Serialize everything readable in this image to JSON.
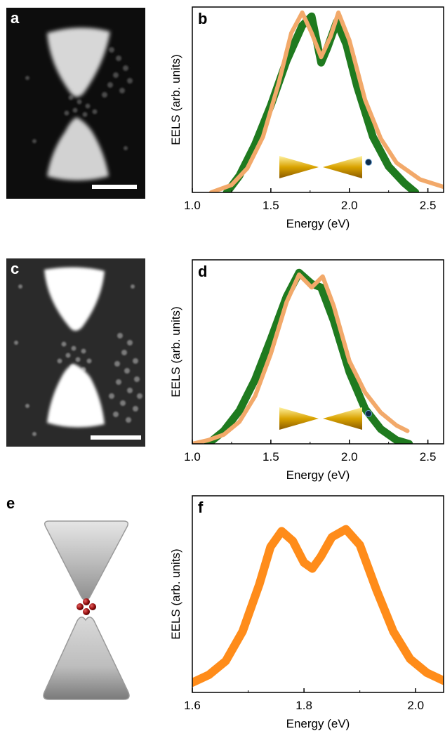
{
  "panels": {
    "a": "a",
    "b": "b",
    "c": "c",
    "d": "d",
    "e": "e",
    "f": "f"
  },
  "colors": {
    "green": "#1f7a1f",
    "light_orange": "#f2a96a",
    "orange": "#ff8c1a",
    "gold": "#d9a300"
  },
  "chart_data": [
    {
      "id": "b",
      "type": "line",
      "xlabel": "Energy (eV)",
      "ylabel": "EELS (arb. units)",
      "xlim": [
        1.0,
        2.6
      ],
      "ylim": [
        0,
        1.0
      ],
      "xticks": [
        "1.0",
        "1.5",
        "2.0",
        "2.5"
      ],
      "xtick_values": [
        1.0,
        1.5,
        2.0,
        2.5
      ],
      "series": [
        {
          "color": "#1f7a1f",
          "x": [
            1.22,
            1.3,
            1.4,
            1.5,
            1.6,
            1.7,
            1.76,
            1.82,
            1.86,
            1.92,
            1.98,
            2.05,
            2.15,
            2.25,
            2.35,
            2.42
          ],
          "y": [
            0.0,
            0.09,
            0.26,
            0.47,
            0.71,
            0.9,
            0.95,
            0.7,
            0.78,
            0.92,
            0.8,
            0.57,
            0.3,
            0.14,
            0.05,
            0.0
          ]
        },
        {
          "color": "#f2a96a",
          "x": [
            1.12,
            1.25,
            1.35,
            1.45,
            1.55,
            1.63,
            1.7,
            1.76,
            1.82,
            1.88,
            1.93,
            2.0,
            2.1,
            2.2,
            2.3,
            2.45,
            2.6
          ],
          "y": [
            0.0,
            0.04,
            0.13,
            0.3,
            0.59,
            0.86,
            0.97,
            0.86,
            0.73,
            0.84,
            0.97,
            0.82,
            0.5,
            0.29,
            0.16,
            0.07,
            0.03
          ]
        }
      ]
    },
    {
      "id": "d",
      "type": "line",
      "xlabel": "Energy (eV)",
      "ylabel": "EELS (arb. units)",
      "xlim": [
        1.0,
        2.6
      ],
      "ylim": [
        0,
        1.0
      ],
      "xticks": [
        "1.0",
        "1.5",
        "2.0",
        "2.5"
      ],
      "xtick_values": [
        1.0,
        1.5,
        2.0,
        2.5
      ],
      "series": [
        {
          "color": "#1f7a1f",
          "x": [
            1.1,
            1.2,
            1.3,
            1.4,
            1.5,
            1.6,
            1.68,
            1.76,
            1.82,
            1.9,
            2.0,
            2.1,
            2.2,
            2.3,
            2.38
          ],
          "y": [
            0.0,
            0.07,
            0.18,
            0.35,
            0.57,
            0.8,
            0.93,
            0.87,
            0.85,
            0.67,
            0.39,
            0.19,
            0.08,
            0.02,
            0.0
          ]
        },
        {
          "color": "#f2a96a",
          "x": [
            1.0,
            1.1,
            1.2,
            1.3,
            1.4,
            1.5,
            1.6,
            1.68,
            1.76,
            1.83,
            1.9,
            2.0,
            2.1,
            2.2,
            2.3,
            2.37
          ],
          "y": [
            0.0,
            0.02,
            0.05,
            0.12,
            0.26,
            0.49,
            0.77,
            0.92,
            0.85,
            0.91,
            0.75,
            0.45,
            0.28,
            0.17,
            0.1,
            0.07
          ]
        }
      ]
    },
    {
      "id": "f",
      "type": "line",
      "xlabel": "Energy (eV)",
      "ylabel": "EELS (arb. units)",
      "xlim": [
        1.6,
        2.05
      ],
      "ylim": [
        0,
        1.0
      ],
      "xticks": [
        "1.6",
        "1.8",
        "2.0"
      ],
      "xtick_values": [
        1.6,
        1.8,
        2.0
      ],
      "series": [
        {
          "color": "#ff8c1a",
          "x": [
            1.6,
            1.63,
            1.66,
            1.69,
            1.72,
            1.74,
            1.76,
            1.78,
            1.8,
            1.815,
            1.83,
            1.85,
            1.875,
            1.9,
            1.93,
            1.96,
            1.99,
            2.02,
            2.05
          ],
          "y": [
            0.05,
            0.09,
            0.16,
            0.31,
            0.55,
            0.74,
            0.82,
            0.77,
            0.66,
            0.63,
            0.69,
            0.79,
            0.83,
            0.75,
            0.52,
            0.31,
            0.17,
            0.1,
            0.06
          ]
        }
      ]
    }
  ]
}
